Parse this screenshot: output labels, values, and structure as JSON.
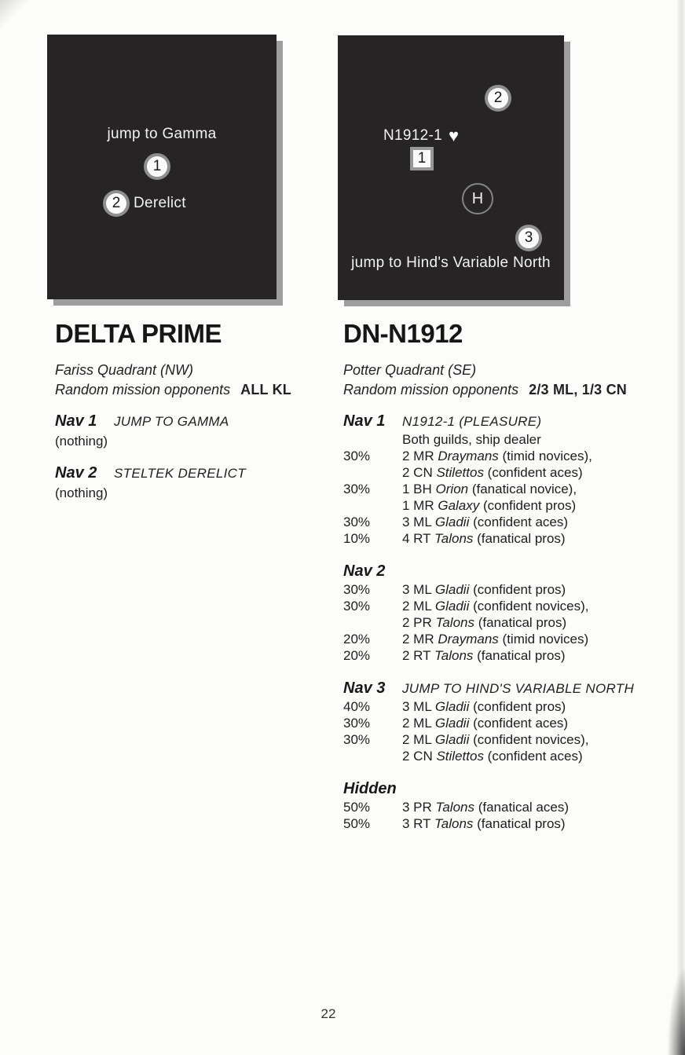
{
  "page": {
    "number": "22"
  },
  "colors": {
    "map_background": "#272425",
    "map_shadow": "#9e9e9e",
    "marker_ring": "#8f8f8f",
    "paper": "#fcfcfa"
  },
  "map1": {
    "caption": "jump to Gamma",
    "nav1": "1",
    "nav2": "2",
    "nav2_label": "Derelict"
  },
  "map2": {
    "station_label": "N1912-1",
    "heart_icon": "♥",
    "nav1": "1",
    "nav2": "2",
    "nav3": "3",
    "hidden": "H",
    "caption": "jump to Hind's Variable North"
  },
  "left_system": {
    "title": "DELTA PRIME",
    "quadrant": "Fariss Quadrant (NW)",
    "opponents_label": "Random mission opponents",
    "opponents_value": "ALL KL",
    "navs": [
      {
        "label": "Nav 1",
        "desc": "JUMP TO GAMMA",
        "note": "(nothing)"
      },
      {
        "label": "Nav 2",
        "desc": "STELTEK DERELICT",
        "note": "(nothing)"
      }
    ]
  },
  "right_system": {
    "title": "DN-N1912",
    "quadrant": "Potter Quadrant (SE)",
    "opponents_label": "Random mission opponents",
    "opponents_value": "2/3 ML, 1/3 CN",
    "sections": [
      {
        "label": "Nav 1",
        "desc": "N1912-1 (PLEASURE)",
        "rows": [
          {
            "pct": "",
            "lines": [
              "Both guilds, ship dealer"
            ]
          },
          {
            "pct": "30%",
            "lines": [
              "2 MR *Draymans* (timid novices),",
              "2 CN *Stilettos* (confident aces)"
            ]
          },
          {
            "pct": "30%",
            "lines": [
              "1 BH *Orion* (fanatical novice),",
              "1 MR *Galaxy* (confident pros)"
            ]
          },
          {
            "pct": "30%",
            "lines": [
              "3 ML *Gladii* (confident aces)"
            ]
          },
          {
            "pct": "10%",
            "lines": [
              "4 RT *Talons* (fanatical pros)"
            ]
          }
        ]
      },
      {
        "label": "Nav 2",
        "desc": "",
        "rows": [
          {
            "pct": "30%",
            "lines": [
              "3 ML *Gladii* (confident pros)"
            ]
          },
          {
            "pct": "30%",
            "lines": [
              "2 ML *Gladii* (confident novices),",
              "2 PR *Talons* (fanatical pros)"
            ]
          },
          {
            "pct": "20%",
            "lines": [
              "2 MR *Draymans* (timid novices)"
            ]
          },
          {
            "pct": "20%",
            "lines": [
              "2 RT *Talons* (fanatical pros)"
            ]
          }
        ]
      },
      {
        "label": "Nav 3",
        "desc": "JUMP TO HIND'S VARIABLE NORTH",
        "rows": [
          {
            "pct": "40%",
            "lines": [
              "3 ML *Gladii* (confident pros)"
            ]
          },
          {
            "pct": "30%",
            "lines": [
              "2 ML *Gladii* (confident aces)"
            ]
          },
          {
            "pct": "30%",
            "lines": [
              "2 ML *Gladii* (confident novices),",
              "2 CN *Stilettos* (confident aces)"
            ]
          }
        ]
      },
      {
        "label": "Hidden",
        "desc": "",
        "rows": [
          {
            "pct": "50%",
            "lines": [
              "3 PR *Talons* (fanatical aces)"
            ]
          },
          {
            "pct": "50%",
            "lines": [
              "3 RT *Talons* (fanatical pros)"
            ]
          }
        ]
      }
    ]
  }
}
